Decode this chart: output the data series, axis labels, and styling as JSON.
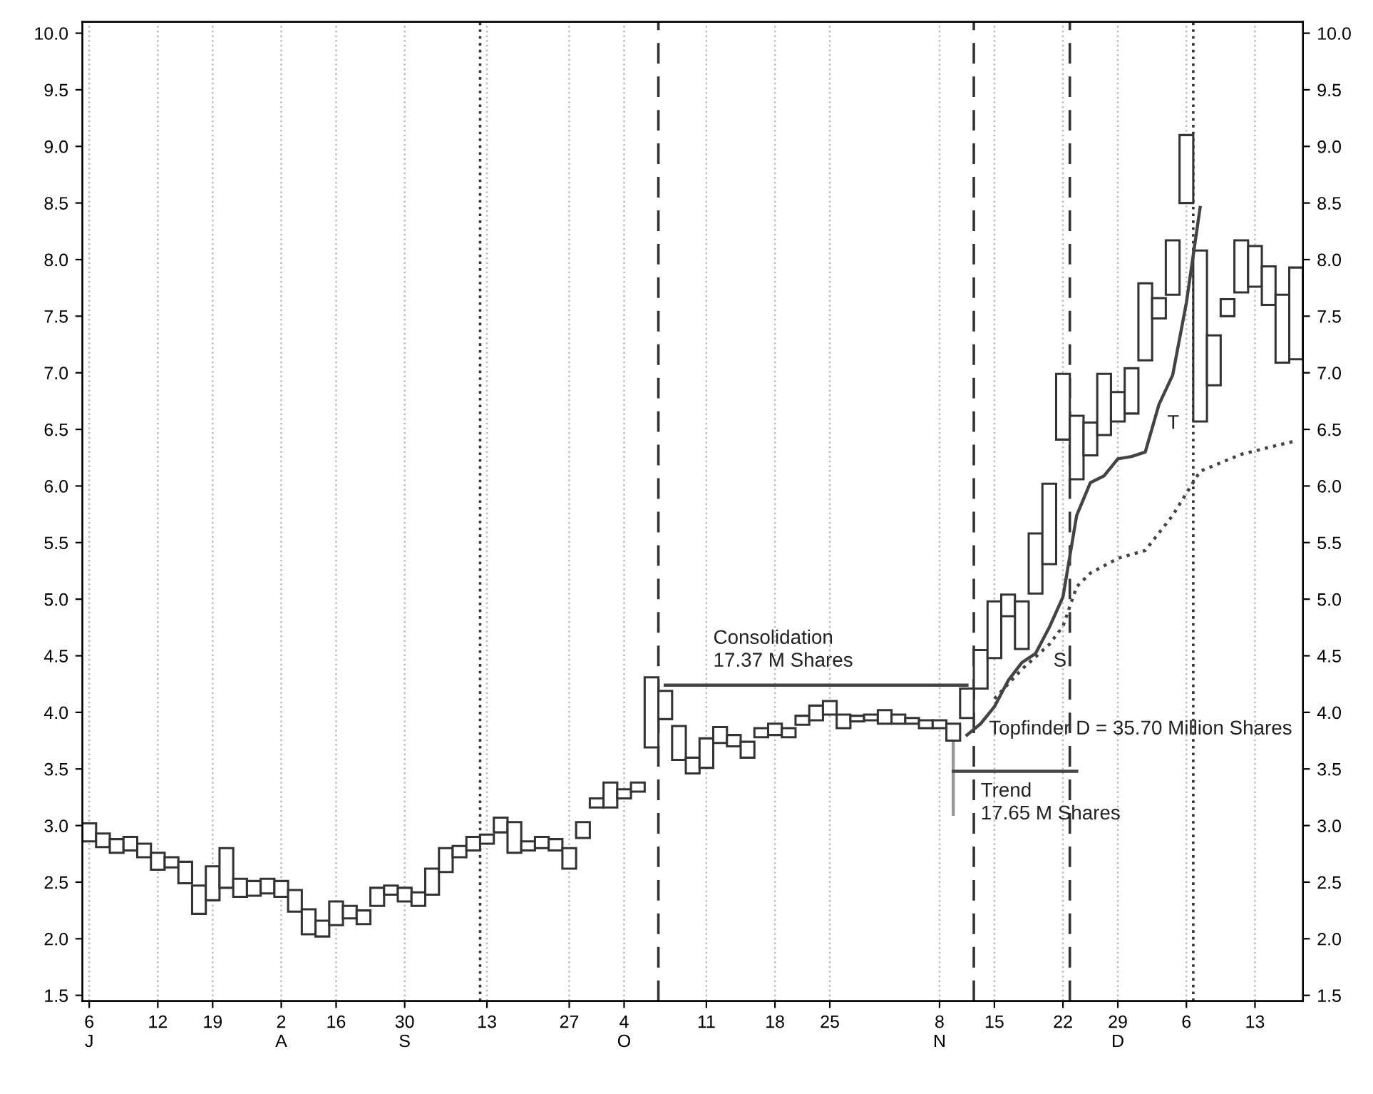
{
  "chart_data": {
    "type": "bar",
    "categories": [
      "6\nJ",
      null,
      null,
      null,
      null,
      "12",
      null,
      null,
      null,
      "19",
      null,
      null,
      null,
      null,
      "2\nA",
      null,
      null,
      null,
      "16",
      null,
      null,
      null,
      null,
      "30\nS",
      null,
      null,
      null,
      null,
      null,
      "13",
      null,
      null,
      null,
      null,
      null,
      "27",
      null,
      null,
      null,
      "4\nO",
      null,
      null,
      null,
      null,
      null,
      "11",
      null,
      null,
      null,
      null,
      "18",
      null,
      null,
      null,
      "25",
      null,
      null,
      null,
      null,
      null,
      null,
      null,
      "8\nN",
      null,
      null,
      null,
      "15",
      null,
      null,
      null,
      null,
      "22",
      null,
      null,
      null,
      "29\nD",
      null,
      null,
      null,
      null,
      "6",
      null,
      null,
      null,
      null,
      "13",
      null,
      null,
      null
    ],
    "ylim": [
      1.45,
      10.1
    ],
    "y2lim": [
      1.45,
      10.1
    ],
    "yticks": [
      1.5,
      {
        "value": 2,
        "label": "2.0"
      },
      2.5,
      {
        "value": 3,
        "label": "3.0"
      },
      3.5,
      {
        "value": 4,
        "label": "4.0"
      },
      4.5,
      {
        "value": 5,
        "label": "5.0"
      },
      5.5,
      {
        "value": 6,
        "label": "6.0"
      },
      6.5,
      {
        "value": 7,
        "label": "7.0"
      },
      7.5,
      {
        "value": 8,
        "label": "8.0"
      },
      8.5,
      {
        "value": 9,
        "label": "9.0"
      },
      9.5,
      {
        "value": 10,
        "label": "10.0"
      }
    ],
    "y2ticks": [
      1.5,
      {
        "value": 2,
        "label": "2.0"
      },
      2.5,
      {
        "value": 3,
        "label": "3.0"
      },
      3.5,
      {
        "value": 4,
        "label": "4.0"
      },
      4.5,
      {
        "value": 5,
        "label": "5.0"
      },
      5.5,
      {
        "value": 6,
        "label": "6.0"
      },
      6.5,
      {
        "value": 7,
        "label": "7.0"
      },
      7.5,
      {
        "value": 8,
        "label": "8.0"
      },
      8.5,
      {
        "value": 9,
        "label": "9.0"
      },
      9.5,
      {
        "value": 10,
        "label": "10.0"
      }
    ],
    "grid": "x",
    "series": [
      {
        "color": "#333333",
        "base": [
          2.86,
          2.81,
          2.76,
          2.78,
          2.72,
          2.61,
          2.63,
          2.49,
          2.22,
          2.34,
          2.45,
          2.37,
          2.38,
          2.4,
          2.37,
          2.24,
          2.04,
          2.02,
          2.12,
          2.18,
          2.13,
          2.29,
          2.39,
          2.33,
          2.29,
          2.39,
          2.59,
          2.72,
          2.78,
          2.84,
          2.94,
          2.76,
          2.78,
          2.8,
          2.78,
          2.62,
          2.89,
          3.16,
          3.16,
          3.24,
          3.3,
          3.69,
          3.94,
          3.58,
          3.46,
          3.51,
          3.73,
          3.7,
          3.6,
          3.78,
          3.8,
          3.78,
          3.89,
          3.93,
          3.98,
          3.86,
          3.92,
          3.93,
          3.9,
          3.9,
          3.9,
          3.86,
          3.86,
          3.75,
          3.95,
          4.21,
          4.48,
          4.85,
          4.56,
          5.05,
          5.31,
          6.41,
          6.06,
          6.27,
          6.45,
          6.57,
          6.64,
          7.11,
          7.48,
          7.69,
          8.5,
          6.57,
          6.89,
          7.5,
          7.71,
          7.76,
          7.6,
          7.09,
          7.12
        ],
        "values": [
          0.16,
          0.12,
          0.12,
          0.12,
          0.12,
          0.15,
          0.09,
          0.19,
          0.25,
          0.3,
          0.35,
          0.16,
          0.13,
          0.13,
          0.14,
          0.19,
          0.22,
          0.14,
          0.21,
          0.11,
          0.12,
          0.16,
          0.08,
          0.12,
          0.12,
          0.23,
          0.21,
          0.1,
          0.12,
          0.08,
          0.13,
          0.27,
          0.08,
          0.1,
          0.1,
          0.18,
          0.14,
          0.08,
          0.22,
          0.08,
          0.08,
          0.62,
          0.25,
          0.3,
          0.14,
          0.26,
          0.14,
          0.1,
          0.14,
          0.08,
          0.1,
          0.08,
          0.08,
          0.13,
          0.12,
          0.12,
          0.05,
          0.05,
          0.12,
          0.08,
          0.05,
          0.07,
          0.07,
          0.15,
          0.26,
          0.34,
          0.5,
          0.19,
          0.42,
          0.53,
          0.71,
          0.58,
          0.56,
          0.29,
          0.54,
          0.26,
          0.4,
          0.68,
          0.18,
          0.48,
          0.6,
          1.51,
          0.44,
          0.15,
          0.46,
          0.36,
          0.34,
          0.6,
          0.81
        ],
        "errors": [
          null,
          null,
          null,
          null,
          null,
          null,
          null,
          null,
          null,
          null,
          null,
          null,
          null,
          null,
          null,
          null,
          null,
          null,
          null,
          null,
          null,
          null,
          null,
          null,
          null,
          null,
          null,
          null,
          null,
          null,
          null,
          null,
          null,
          null,
          null,
          null,
          null,
          null,
          null,
          null,
          null,
          null,
          null,
          null,
          null,
          null,
          null,
          null,
          null,
          null,
          null,
          null,
          null,
          null,
          null,
          null,
          null,
          null,
          null,
          null,
          null,
          null,
          null,
          [
            3.1,
            3.75
          ],
          null,
          null,
          null,
          null,
          null,
          null,
          null,
          null,
          null,
          null,
          null,
          null,
          null,
          null,
          null,
          null,
          null,
          null,
          null,
          null,
          null,
          null,
          null,
          null,
          null
        ]
      },
      {
        "type": "line",
        "color": "#444444",
        "line_style": "solid",
        "values": [
          null,
          null,
          null,
          null,
          null,
          null,
          null,
          null,
          null,
          null,
          null,
          null,
          null,
          null,
          null,
          null,
          null,
          null,
          null,
          null,
          null,
          null,
          null,
          null,
          null,
          null,
          null,
          null,
          null,
          null,
          null,
          null,
          null,
          null,
          null,
          null,
          null,
          null,
          null,
          null,
          null,
          null,
          null,
          null,
          null,
          null,
          null,
          null,
          null,
          null,
          null,
          null,
          null,
          null,
          null,
          null,
          null,
          null,
          null,
          null,
          null,
          null,
          null,
          null,
          3.8,
          3.9,
          4.05,
          4.28,
          4.44,
          4.52,
          4.75,
          5.02,
          5.74,
          6.03,
          6.09,
          6.24,
          6.26,
          6.3,
          6.72,
          6.98,
          7.62,
          8.46,
          null,
          null,
          null,
          null,
          null,
          null,
          null
        ]
      },
      {
        "type": "line",
        "color": "#444444",
        "line_style": "dotted",
        "values": [
          null,
          null,
          null,
          null,
          null,
          null,
          null,
          null,
          null,
          null,
          null,
          null,
          null,
          null,
          null,
          null,
          null,
          null,
          null,
          null,
          null,
          null,
          null,
          null,
          null,
          null,
          null,
          null,
          null,
          null,
          null,
          null,
          null,
          null,
          null,
          null,
          null,
          null,
          null,
          null,
          null,
          null,
          null,
          null,
          null,
          null,
          null,
          null,
          null,
          null,
          null,
          null,
          null,
          null,
          null,
          null,
          null,
          null,
          null,
          null,
          null,
          null,
          null,
          null,
          null,
          null,
          4.12,
          null,
          4.38,
          null,
          4.6,
          4.76,
          5.11,
          5.23,
          null,
          5.36,
          null,
          5.43,
          null,
          5.74,
          null,
          6.13,
          null,
          null,
          6.28,
          null,
          null,
          null,
          6.4
        ]
      },
      {
        "type": "line",
        "color": "#444444",
        "line_style": "solid",
        "values": [
          null,
          null,
          null,
          null,
          null,
          null,
          null,
          null,
          null,
          null,
          null,
          null,
          null,
          null,
          null,
          null,
          null,
          null,
          null,
          null,
          null,
          null,
          null,
          null,
          null,
          null,
          null,
          null,
          null,
          null,
          null,
          null,
          null,
          null,
          null,
          null,
          null,
          null,
          null,
          null,
          null,
          null,
          4.24,
          null,
          null,
          null,
          null,
          null,
          null,
          null,
          null,
          null,
          null,
          null,
          null,
          null,
          null,
          null,
          null,
          null,
          null,
          null,
          null,
          null,
          4.24,
          null,
          null,
          null,
          null,
          null,
          null,
          null,
          null,
          null,
          null,
          null,
          null,
          null,
          null,
          null,
          null,
          null,
          null,
          null,
          null,
          null,
          null,
          null,
          null
        ]
      },
      {
        "type": "line",
        "color": "#444444",
        "line_style": "solid",
        "values": [
          null,
          null,
          null,
          null,
          null,
          null,
          null,
          null,
          null,
          null,
          null,
          null,
          null,
          null,
          null,
          null,
          null,
          null,
          null,
          null,
          null,
          null,
          null,
          null,
          null,
          null,
          null,
          null,
          null,
          null,
          null,
          null,
          null,
          null,
          null,
          null,
          null,
          null,
          null,
          null,
          null,
          null,
          null,
          null,
          null,
          null,
          null,
          null,
          null,
          null,
          null,
          null,
          null,
          null,
          null,
          null,
          null,
          null,
          null,
          null,
          null,
          null,
          null,
          3.48,
          null,
          null,
          null,
          null,
          null,
          null,
          null,
          null,
          3.48,
          null,
          null,
          null,
          null,
          null,
          null,
          null,
          null,
          null,
          null,
          null,
          null,
          null,
          null,
          null,
          null
        ]
      }
    ],
    "annotations": [
      "Consolidation\n17.37 M Shares",
      "Trend\n17.65 M Shares",
      "Topfinder D = 35.70 Million Shares",
      "T",
      "S"
    ]
  }
}
